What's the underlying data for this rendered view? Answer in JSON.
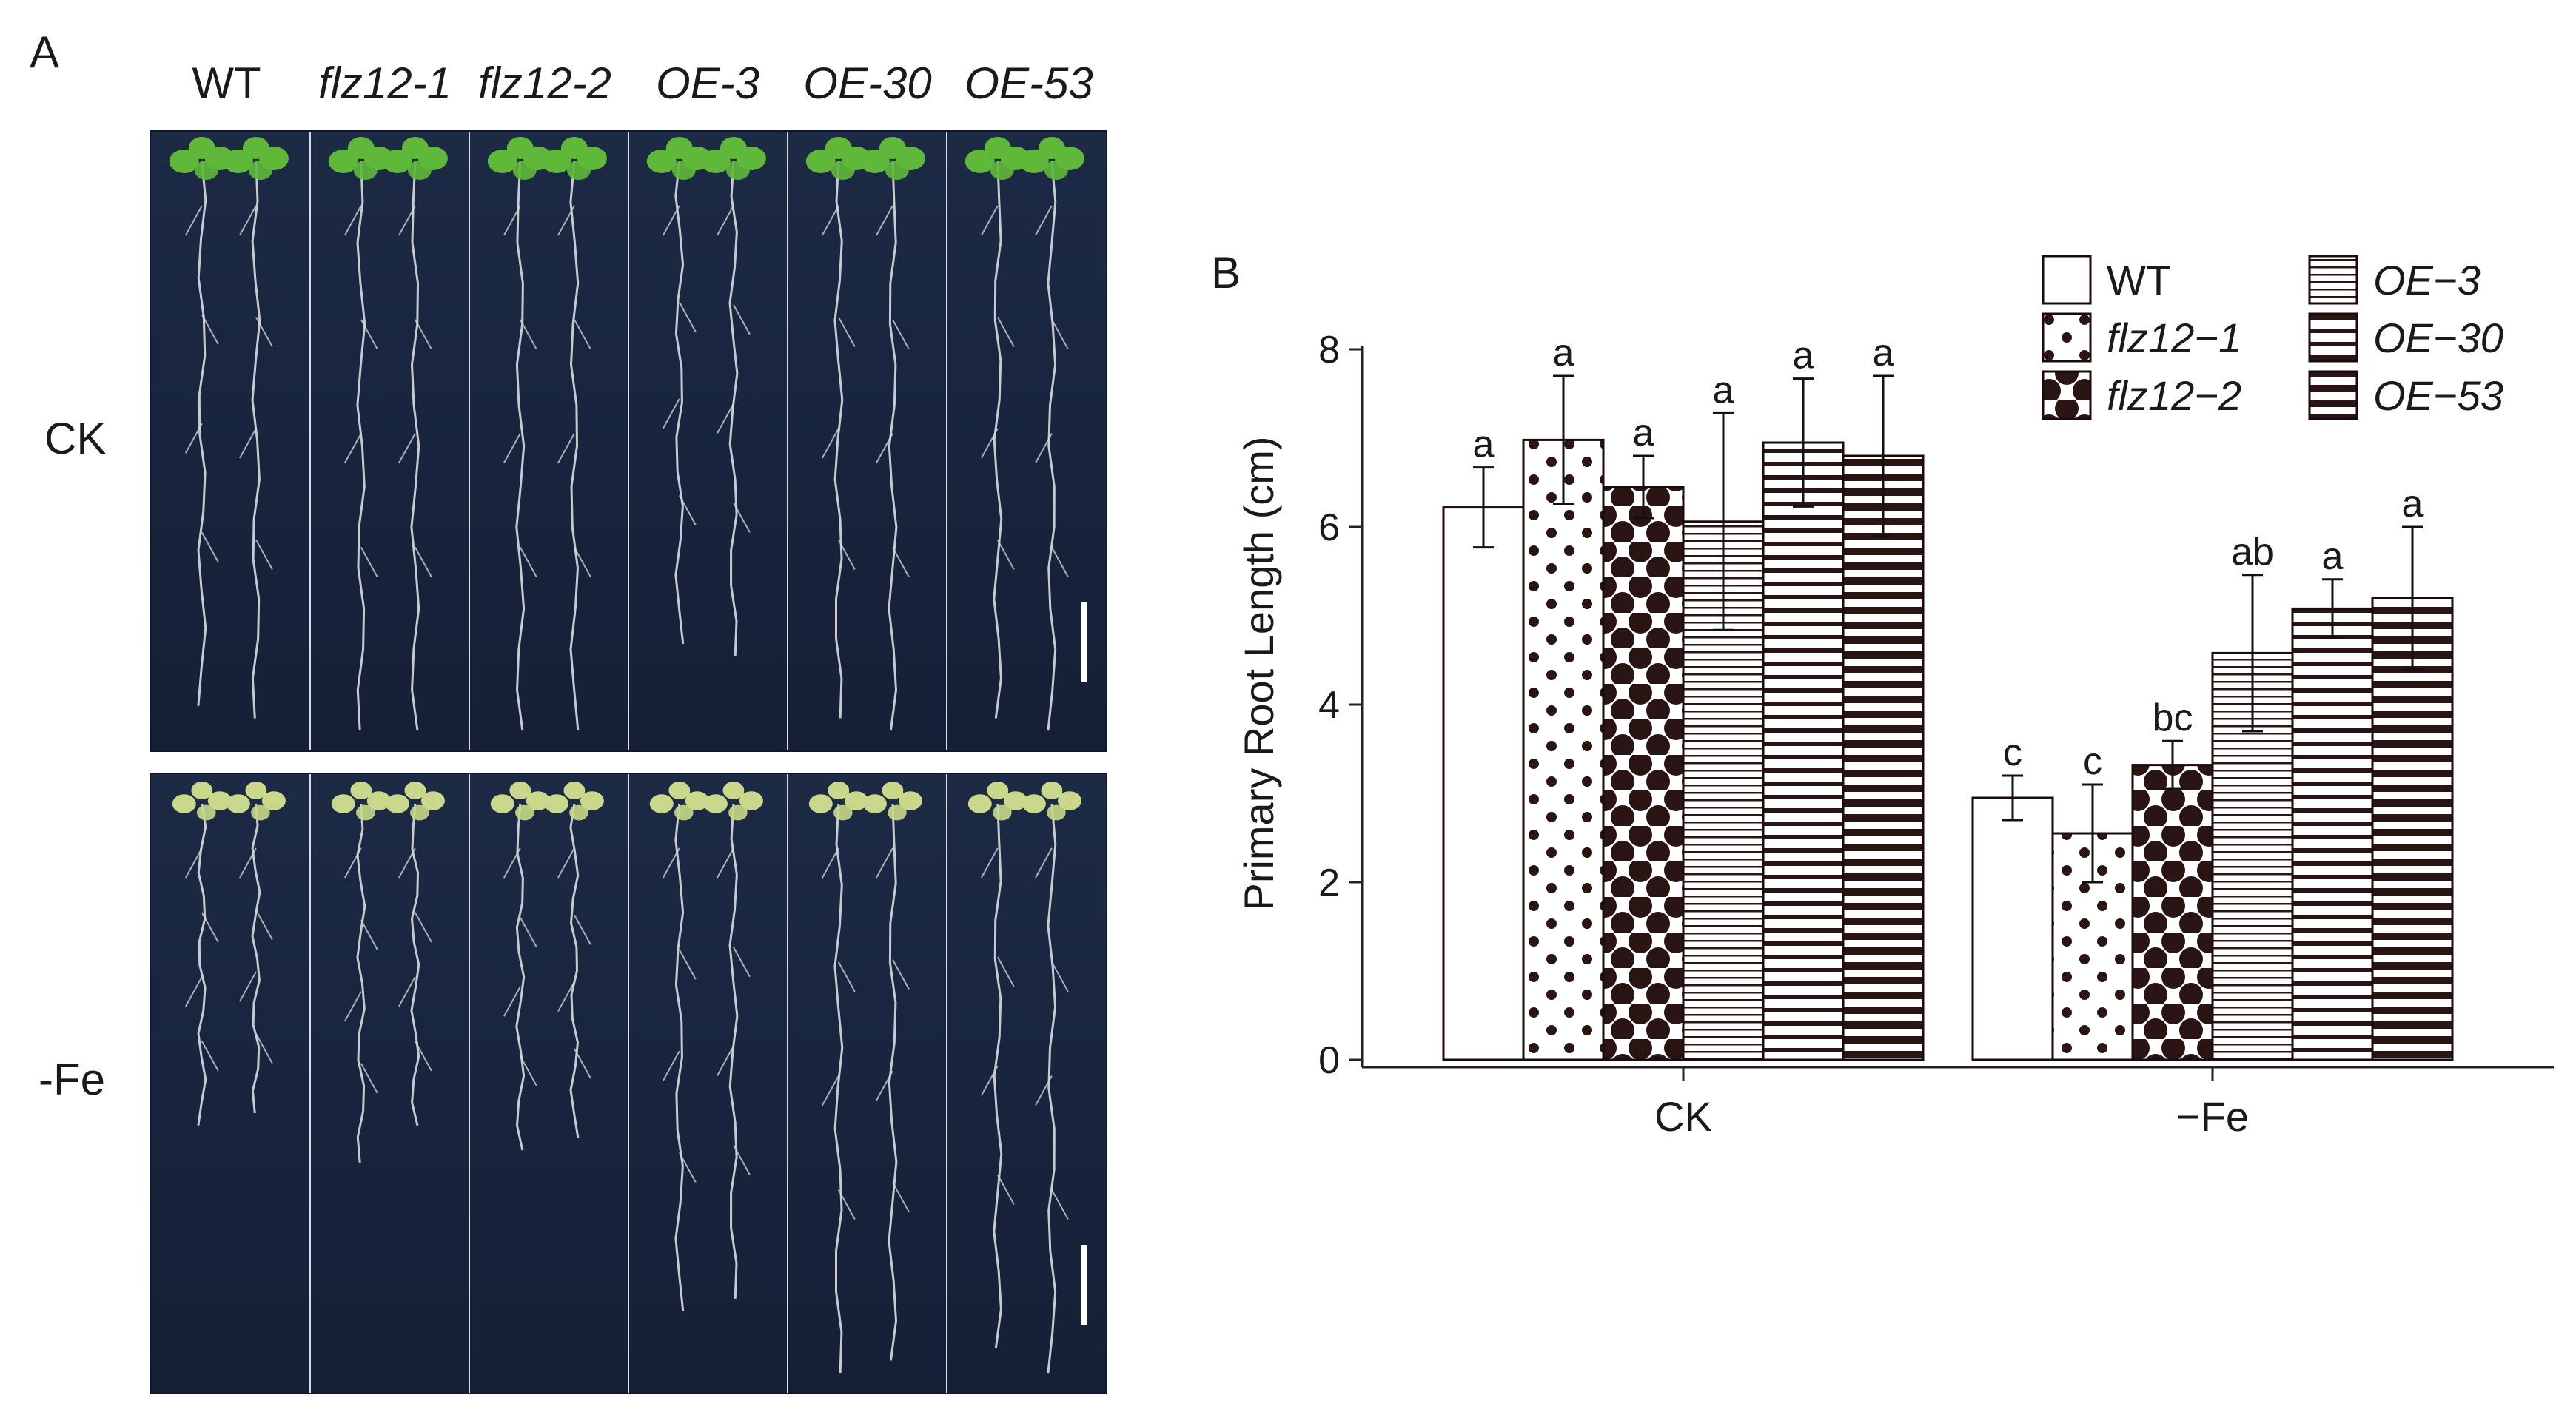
{
  "panel_a": {
    "label": "A",
    "columns": [
      "WT",
      "flz12-1",
      "flz12-2",
      "OE-3",
      "OE-30",
      "OE-53"
    ],
    "rows": [
      "CK",
      "-Fe"
    ]
  },
  "panel_b": {
    "label": "B"
  },
  "colors": {
    "bar_fill": "#2a1414",
    "bar_stroke": "#1a0a0a",
    "photo_bg": "#1a2640",
    "leaf_green": "#5fb83a",
    "leaf_pale": "#c9d88a",
    "root": "#d9dde0"
  },
  "chart_data": {
    "type": "bar",
    "title": "",
    "xlabel": "",
    "ylabel": "Primary Root Length (cm)",
    "ylim": [
      0,
      8
    ],
    "yticks": [
      0,
      2,
      4,
      6,
      8
    ],
    "grid": false,
    "legend_position": "top-right",
    "categories": [
      "CK",
      "−Fe"
    ],
    "series": [
      {
        "name": "WT",
        "pattern": "white",
        "values": [
          6.22,
          2.95
        ],
        "errors": [
          0.45,
          0.25
        ],
        "letters": [
          "a",
          "c"
        ]
      },
      {
        "name": "flz12−1",
        "pattern": "dots-small",
        "values": [
          6.98,
          2.55
        ],
        "errors": [
          0.72,
          0.55
        ],
        "letters": [
          "a",
          "c"
        ]
      },
      {
        "name": "flz12−2",
        "pattern": "dots-large",
        "values": [
          6.45,
          3.32
        ],
        "errors": [
          0.35,
          0.27
        ],
        "letters": [
          "a",
          "bc"
        ]
      },
      {
        "name": "OE−3",
        "pattern": "hlines-thin",
        "values": [
          6.06,
          4.58
        ],
        "errors": [
          1.22,
          0.88
        ],
        "letters": [
          "a",
          "ab"
        ]
      },
      {
        "name": "OE−30",
        "pattern": "hlines-medium",
        "values": [
          6.95,
          5.08
        ],
        "errors": [
          0.72,
          0.33
        ],
        "letters": [
          "a",
          "a"
        ]
      },
      {
        "name": "OE−53",
        "pattern": "hlines-thick",
        "values": [
          6.8,
          5.2
        ],
        "errors": [
          0.9,
          0.8
        ],
        "letters": [
          "a",
          "a"
        ]
      }
    ]
  }
}
